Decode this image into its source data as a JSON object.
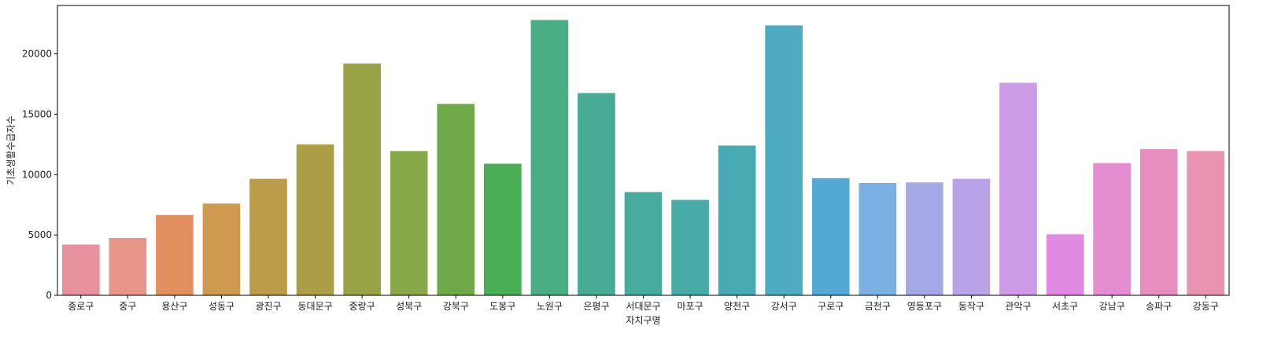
{
  "chart_data": {
    "type": "bar",
    "title": "",
    "xlabel": "자치구명",
    "ylabel": "기초생활수급자수",
    "ylim": [
      0,
      24000
    ],
    "yticks": [
      0,
      5000,
      10000,
      15000,
      20000
    ],
    "ytick_labels": [
      "0",
      "5000",
      "10000",
      "15000",
      "20000"
    ],
    "categories": [
      "종로구",
      "중구",
      "용산구",
      "성동구",
      "광진구",
      "동대문구",
      "중랑구",
      "성북구",
      "강북구",
      "도봉구",
      "노원구",
      "은평구",
      "서대문구",
      "마포구",
      "양천구",
      "강서구",
      "구로구",
      "금천구",
      "영등포구",
      "동작구",
      "관악구",
      "서초구",
      "강남구",
      "송파구",
      "강동구"
    ],
    "values": [
      4200,
      4750,
      6650,
      7600,
      9650,
      12500,
      19200,
      11950,
      15850,
      10900,
      22800,
      16750,
      8550,
      7900,
      12400,
      22350,
      9700,
      9300,
      9350,
      9650,
      17600,
      5050,
      10950,
      12100,
      11950
    ],
    "colors": [
      "#e8919e",
      "#e8968a",
      "#e29060",
      "#cd9a4f",
      "#bb9c49",
      "#ab9e47",
      "#9aa246",
      "#89a84a",
      "#6fa94a",
      "#4aae57",
      "#4aae84",
      "#48ab96",
      "#48aba0",
      "#47aba8",
      "#48aab3",
      "#4dacc2",
      "#51a9d4",
      "#7ab0e2",
      "#a4a9e6",
      "#b9a3e8",
      "#cd9be5",
      "#e089e3",
      "#e48dd1",
      "#e68ec0",
      "#e893b2"
    ],
    "grid": false
  }
}
